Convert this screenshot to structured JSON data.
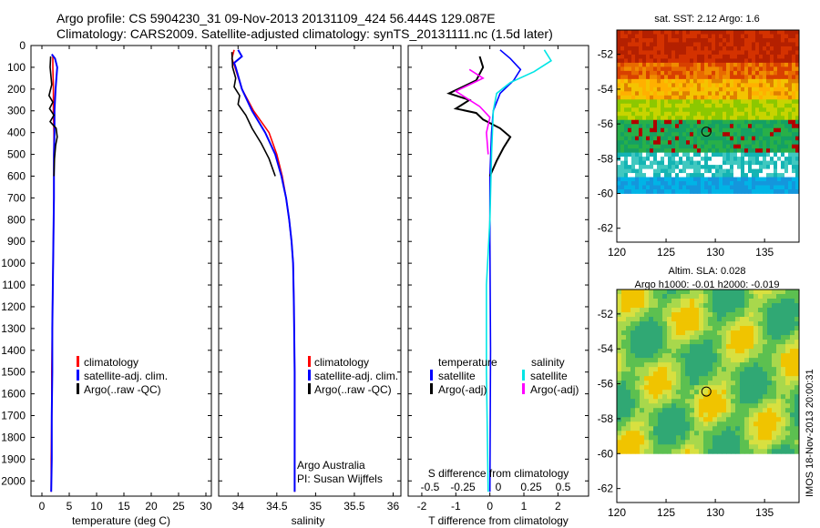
{
  "header": {
    "line1": "Argo profile: CS 5904230_31 09-Nov-2013 20131109_424 56.444S 129.087E",
    "line2": "Climatology: CARS2009. Satellite-adjusted climatology: synTS_20131111.nc (1.5d later)"
  },
  "sidebar_stamp": "IMOS 18-Nov-2013 20:00:31",
  "colors": {
    "climatology": "#ff0000",
    "satellite_adj": "#0000ff",
    "argo": "#000000",
    "satellite_S": "#00e5e5",
    "argo_adj_S": "#ff00ff"
  },
  "chart_data": [
    {
      "type": "line",
      "name": "temperature-profile",
      "xlabel": "temperature (deg C)",
      "ylabel": "",
      "xlim": [
        -2,
        31
      ],
      "ylim": [
        2070,
        0
      ],
      "xticks": [
        0,
        5,
        10,
        15,
        20,
        25,
        30
      ],
      "yticks": [
        0,
        100,
        200,
        300,
        400,
        500,
        600,
        700,
        800,
        900,
        1000,
        1100,
        1200,
        1300,
        1400,
        1500,
        1600,
        1700,
        1800,
        1900,
        2000
      ],
      "legend": [
        "climatology",
        "satellite-adj. clim.",
        "Argo(..raw -QC)"
      ],
      "series": [
        {
          "name": "climatology",
          "x": [
            2.0,
            2.0,
            2.1,
            2.1,
            2.2,
            2.2,
            2.2,
            2.1,
            2.0,
            1.9,
            1.8,
            1.8,
            1.7,
            1.7
          ],
          "y": [
            50,
            100,
            200,
            300,
            400,
            500,
            700,
            900,
            1100,
            1300,
            1500,
            1700,
            1900,
            2050
          ]
        },
        {
          "name": "satellite-adj. clim.",
          "x": [
            1.8,
            2.4,
            2.8,
            2.5,
            2.3,
            2.3,
            2.2,
            2.2,
            2.1,
            2.0,
            1.9,
            1.9,
            1.8,
            1.8,
            1.7
          ],
          "y": [
            40,
            60,
            100,
            200,
            300,
            400,
            500,
            700,
            900,
            1100,
            1300,
            1500,
            1700,
            1900,
            2050
          ]
        },
        {
          "name": "Argo(..raw -QC)",
          "x": [
            1.6,
            1.5,
            1.8,
            1.3,
            2.0,
            1.4,
            2.2,
            1.5,
            2.6,
            2.8,
            2.5,
            2.3,
            2.2
          ],
          "y": [
            50,
            100,
            180,
            230,
            260,
            290,
            320,
            350,
            380,
            420,
            460,
            520,
            600
          ]
        }
      ]
    },
    {
      "type": "line",
      "name": "salinity-profile",
      "xlabel": "salinity",
      "ylabel": "",
      "xlim": [
        33.75,
        36.1
      ],
      "ylim": [
        2070,
        0
      ],
      "xticks": [
        34,
        34.5,
        35,
        35.5,
        36
      ],
      "xtick_labels": [
        "34",
        "34.5",
        "35",
        "35.5",
        "36"
      ],
      "legend": [
        "climatology",
        "satellite-adj. clim.",
        "Argo(..raw -QC)"
      ],
      "annotation": [
        "Argo Australia",
        "PI: Susan Wijffels"
      ],
      "series": [
        {
          "name": "climatology",
          "x": [
            33.95,
            33.92,
            33.96,
            34.05,
            34.2,
            34.4,
            34.5,
            34.57,
            34.62,
            34.66,
            34.69,
            34.71,
            34.72,
            34.73,
            34.73
          ],
          "y": [
            20,
            60,
            100,
            200,
            300,
            400,
            500,
            600,
            700,
            800,
            900,
            1000,
            1200,
            1500,
            2050
          ]
        },
        {
          "name": "satellite-adj. clim.",
          "x": [
            34.0,
            34.05,
            33.95,
            33.97,
            34.05,
            34.18,
            34.35,
            34.48,
            34.56,
            34.62,
            34.66,
            34.69,
            34.71,
            34.72,
            34.73,
            34.73
          ],
          "y": [
            20,
            50,
            80,
            100,
            200,
            300,
            400,
            500,
            600,
            700,
            800,
            900,
            1000,
            1200,
            1500,
            2050
          ]
        },
        {
          "name": "Argo(..raw -QC)",
          "x": [
            33.92,
            33.93,
            33.97,
            33.95,
            34.02,
            34.0,
            34.1,
            34.18,
            34.3,
            34.4,
            34.48
          ],
          "y": [
            30,
            100,
            150,
            190,
            230,
            270,
            320,
            380,
            450,
            520,
            600
          ]
        }
      ]
    },
    {
      "type": "line",
      "name": "difference-profile",
      "xlabel": "T difference from climatology",
      "xlabel_top": "S difference from climatology",
      "xlim": [
        -2.4,
        2.9
      ],
      "ylim": [
        2070,
        0
      ],
      "xticks": [
        -2,
        -1,
        0,
        1,
        2
      ],
      "sticks": [
        -0.5,
        -0.25,
        0,
        0.25,
        0.5
      ],
      "legend_headers": [
        "temperature",
        "salinity"
      ],
      "legend": [
        "satellite",
        "Argo(-adj)",
        "satellite",
        "Argo(-adj)"
      ],
      "series": [
        {
          "name": "temperature satellite",
          "x": [
            0.3,
            0.6,
            0.9,
            0.7,
            0.3,
            0.1,
            0.05,
            0.0,
            0.0,
            0.02,
            0.0
          ],
          "y": [
            20,
            60,
            110,
            160,
            220,
            300,
            400,
            600,
            900,
            1400,
            2050
          ]
        },
        {
          "name": "temperature Argo(-adj)",
          "x": [
            -0.3,
            -0.2,
            -0.4,
            -1.2,
            -0.6,
            -1.0,
            -0.4,
            -0.2,
            0.3,
            0.6,
            0.4,
            0.2,
            0.0
          ],
          "y": [
            50,
            100,
            160,
            220,
            250,
            290,
            310,
            340,
            380,
            420,
            470,
            530,
            600
          ]
        },
        {
          "name": "salinity satellite",
          "x": [
            1.6,
            1.8,
            1.3,
            0.6,
            0.2,
            0.1,
            0.05,
            0.0,
            -0.1,
            -0.1,
            -0.05
          ],
          "y": [
            20,
            70,
            120,
            170,
            220,
            300,
            500,
            800,
            1100,
            1500,
            2050
          ]
        },
        {
          "name": "salinity Argo(-adj)",
          "x": [
            -0.6,
            -0.2,
            -1.0,
            -0.7,
            -0.3,
            0.0,
            -0.1,
            -0.05
          ],
          "y": [
            110,
            150,
            210,
            240,
            280,
            330,
            400,
            500
          ]
        }
      ]
    },
    {
      "type": "heatmap",
      "name": "sst-map",
      "title": "sat. SST: 2.12 Argo: 1.6",
      "xlim": [
        120,
        138.5
      ],
      "ylim": [
        -62.8,
        -50.6
      ],
      "xticks": [
        120,
        125,
        130,
        135
      ],
      "yticks": [
        -52,
        -54,
        -56,
        -58,
        -60,
        -62
      ],
      "marker": {
        "lon": 129.087,
        "lat": -56.444
      }
    },
    {
      "type": "heatmap",
      "name": "sla-map",
      "title_lines": [
        "Altim. SLA: 0.028",
        "Argo h1000: -0.01 h2000: -0.019"
      ],
      "xlim": [
        120,
        138.5
      ],
      "ylim": [
        -62.8,
        -50.6
      ],
      "xticks": [
        120,
        125,
        130,
        135
      ],
      "yticks": [
        -52,
        -54,
        -56,
        -58,
        -60,
        -62
      ],
      "marker": {
        "lon": 129.087,
        "lat": -56.444
      }
    }
  ]
}
